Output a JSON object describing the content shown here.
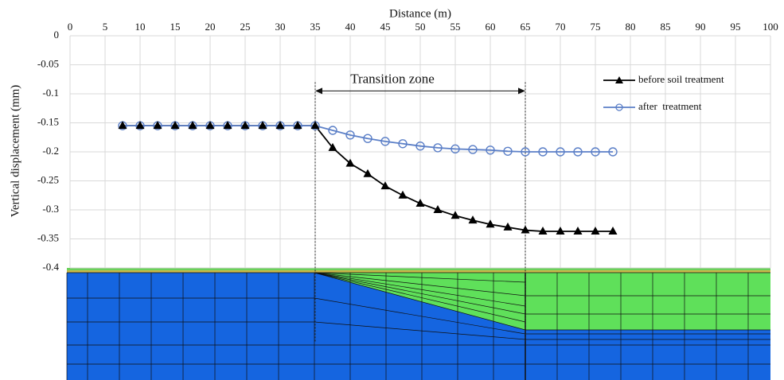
{
  "chart_data": {
    "type": "line",
    "x_label": "Distance (m)",
    "y_label": "Vertical displacement (mm)",
    "x": [
      7.5,
      10,
      12.5,
      15,
      17.5,
      20,
      22.5,
      25,
      27.5,
      30,
      32.5,
      35,
      37.5,
      40,
      42.5,
      45,
      47.5,
      50,
      52.5,
      55,
      57.5,
      60,
      62.5,
      65,
      67.5,
      70,
      72.5,
      75,
      77.5
    ],
    "series": [
      {
        "name": "before soil treatment",
        "color": "#000000",
        "marker": "triangle",
        "values": [
          -0.155,
          -0.155,
          -0.155,
          -0.155,
          -0.155,
          -0.155,
          -0.155,
          -0.155,
          -0.155,
          -0.155,
          -0.155,
          -0.155,
          -0.193,
          -0.22,
          -0.238,
          -0.259,
          -0.275,
          -0.289,
          -0.3,
          -0.31,
          -0.318,
          -0.325,
          -0.33,
          -0.335,
          -0.337,
          -0.337,
          -0.337,
          -0.337,
          -0.337
        ]
      },
      {
        "name": "after  treatment",
        "color": "#5b7fc7",
        "marker": "circle",
        "values": [
          -0.155,
          -0.155,
          -0.155,
          -0.155,
          -0.155,
          -0.155,
          -0.155,
          -0.155,
          -0.155,
          -0.155,
          -0.155,
          -0.155,
          -0.163,
          -0.171,
          -0.177,
          -0.182,
          -0.186,
          -0.19,
          -0.193,
          -0.195,
          -0.196,
          -0.197,
          -0.199,
          -0.2,
          -0.2,
          -0.2,
          -0.2,
          -0.2,
          -0.2
        ]
      }
    ],
    "xlim": [
      0,
      100
    ],
    "xticks": [
      0,
      5,
      10,
      15,
      20,
      25,
      30,
      35,
      40,
      45,
      50,
      55,
      60,
      65,
      70,
      75,
      80,
      85,
      90,
      95,
      100
    ],
    "ylim": [
      0,
      -0.4
    ],
    "yticks": [
      0,
      -0.05,
      -0.1,
      -0.15,
      -0.2,
      -0.25,
      -0.3,
      -0.35,
      -0.4
    ],
    "grid": true,
    "legend": "upper right",
    "annotation": {
      "text": "Transition zone",
      "x_range": [
        35,
        65
      ]
    }
  }
}
